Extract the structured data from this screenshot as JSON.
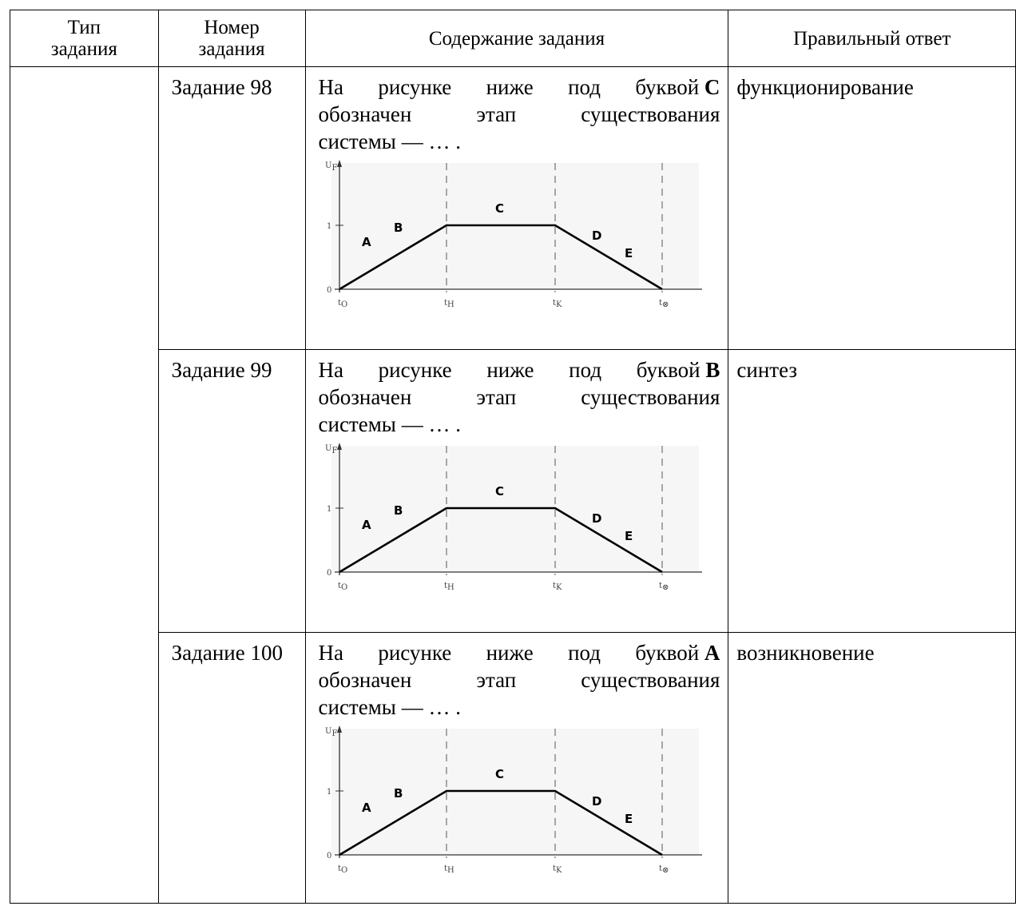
{
  "headers": {
    "type_line1": "Тип",
    "type_line2": "задания",
    "number_line1": "Номер",
    "number_line2": "задания",
    "content": "Содержание задания",
    "answer": "Правильный ответ"
  },
  "figure": {
    "y_axis": "U",
    "y_sub": "F",
    "y_tick_1": "1",
    "y_tick_0": "0",
    "x_axis": "t",
    "t0": "t",
    "t0_sub": "O",
    "tH": "t",
    "tH_sub": "H",
    "tK": "t",
    "tK_sub": "K",
    "tEnd": "t",
    "tEnd_sub": "⊗",
    "stage_A": "A",
    "stage_B": "B",
    "stage_C": "C",
    "stage_D": "D",
    "stage_E": "E"
  },
  "rows": [
    {
      "number": "Задание 98",
      "text_l1_w1": "На",
      "text_l1_w2": "рисунке",
      "text_l1_w3": "ниже",
      "text_l1_w4": "под",
      "text_l1_w5": "буквой",
      "letter": "C",
      "text_l2_w1": "обозначен",
      "text_l2_w2": "этап",
      "text_l2_w3": "существования",
      "text_l3": "системы — … .",
      "answer": "функционирование"
    },
    {
      "number": "Задание 99",
      "text_l1_w1": "На",
      "text_l1_w2": "рисунке",
      "text_l1_w3": "ниже",
      "text_l1_w4": "под",
      "text_l1_w5": "буквой",
      "letter": "B",
      "text_l2_w1": "обозначен",
      "text_l2_w2": "этап",
      "text_l2_w3": "существования",
      "text_l3": "системы — … .",
      "answer": "синтез"
    },
    {
      "number": "Задание 100",
      "text_l1_w1": "На",
      "text_l1_w2": "рисунке",
      "text_l1_w3": "ниже",
      "text_l1_w4": "под",
      "text_l1_w5": "буквой",
      "letter": "A",
      "text_l2_w1": "обозначен",
      "text_l2_w2": "этап",
      "text_l2_w3": "существования",
      "text_l3": "системы — … .",
      "answer": "возникновение"
    }
  ]
}
